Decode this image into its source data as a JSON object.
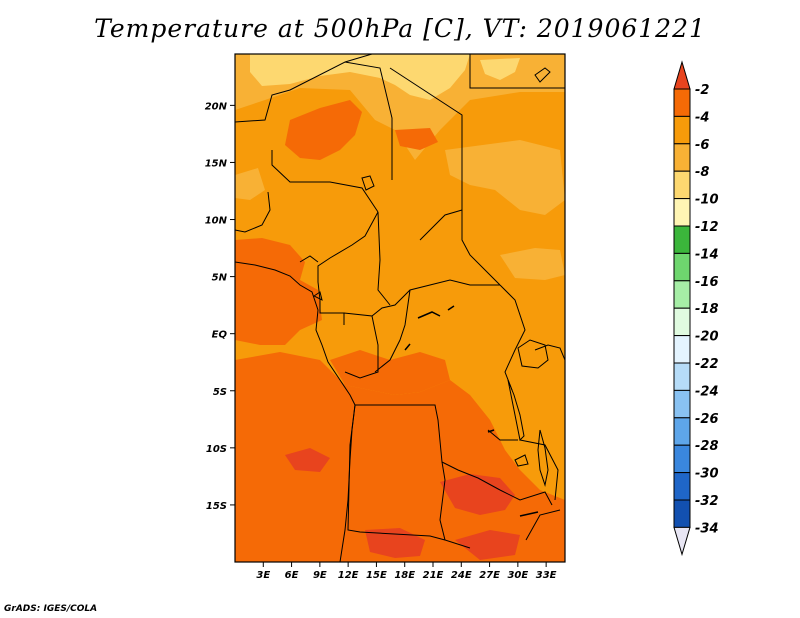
{
  "title": "Temperature at 500hPa [C], VT: 2019061221",
  "footer": "GrADS: IGES/COLA",
  "map": {
    "variable": "Temperature at 500hPa",
    "units": "C",
    "valid_time": "2019061221",
    "lon_range": [
      0,
      35
    ],
    "lat_range": [
      -20,
      24.5
    ],
    "lat_ticks": [
      {
        "value": 20,
        "label": "20N"
      },
      {
        "value": 15,
        "label": "15N"
      },
      {
        "value": 10,
        "label": "10N"
      },
      {
        "value": 5,
        "label": "5N"
      },
      {
        "value": 0,
        "label": "EQ"
      },
      {
        "value": -5,
        "label": "5S"
      },
      {
        "value": -10,
        "label": "10S"
      },
      {
        "value": -15,
        "label": "15S"
      }
    ],
    "lon_ticks": [
      {
        "value": 3,
        "label": "3E"
      },
      {
        "value": 6,
        "label": "6E"
      },
      {
        "value": 9,
        "label": "9E"
      },
      {
        "value": 12,
        "label": "12E"
      },
      {
        "value": 15,
        "label": "15E"
      },
      {
        "value": 18,
        "label": "18E"
      },
      {
        "value": 21,
        "label": "21E"
      },
      {
        "value": 24,
        "label": "24E"
      },
      {
        "value": 27,
        "label": "27E"
      },
      {
        "value": 30,
        "label": "30E"
      },
      {
        "value": 33,
        "label": "33E"
      }
    ]
  },
  "colorbar": {
    "labels": [
      "-2",
      "-4",
      "-6",
      "-8",
      "-10",
      "-12",
      "-14",
      "-16",
      "-18",
      "-20",
      "-22",
      "-24",
      "-26",
      "-28",
      "-30",
      "-32",
      "-34"
    ],
    "colors": [
      "#e8441e",
      "#f56a06",
      "#f79b0a",
      "#f8b135",
      "#fdd870",
      "#fff5b4",
      "#3bb63b",
      "#6ed66e",
      "#a6eea6",
      "#e0fbe0",
      "#e4f4ff",
      "#b6dcf8",
      "#89c2f2",
      "#5ea6ea",
      "#3a87de",
      "#1f66c8",
      "#1250b0",
      "#0d1a78",
      "#e8e6f4"
    ]
  }
}
